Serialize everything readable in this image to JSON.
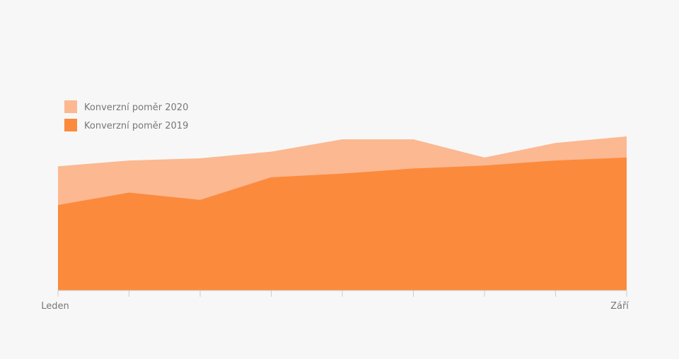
{
  "chart_data": {
    "type": "area",
    "categories": [
      "Leden",
      "",
      "",
      "",
      "",
      "",
      "",
      "",
      "Září"
    ],
    "tick_labels": {
      "first": "Leden",
      "last": "Září"
    },
    "series": [
      {
        "name": "Konverzní poměr 2020",
        "color": "#fcb891",
        "values": [
          170,
          178,
          181,
          190,
          207,
          207,
          182,
          202,
          211
        ]
      },
      {
        "name": "Konverzní poměr 2019",
        "color": "#fc8a3d",
        "values": [
          117,
          134,
          124,
          155,
          160,
          167,
          171,
          178,
          182
        ]
      }
    ],
    "ylim": [
      0,
      300
    ],
    "y_axis_shown": false,
    "grid": false,
    "legend": "top-left",
    "axis_color": "#cccccc"
  }
}
